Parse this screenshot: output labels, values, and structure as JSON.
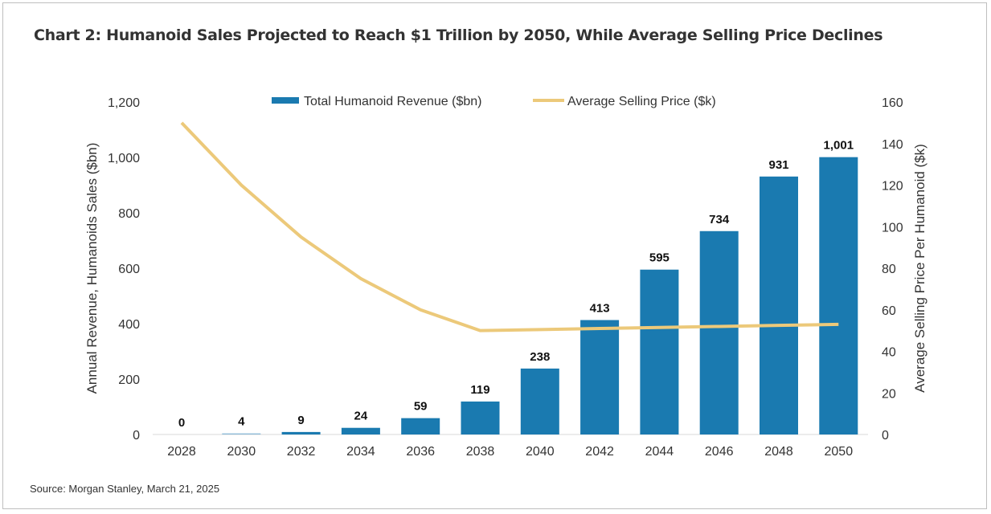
{
  "title": "Chart 2: Humanoid Sales Projected to Reach $1 Trillion by 2050, While Average Selling Price Declines",
  "source": "Source: Morgan Stanley, March 21, 2025",
  "chart_data": {
    "type": "bar+line",
    "categories": [
      "2028",
      "2030",
      "2032",
      "2034",
      "2036",
      "2038",
      "2040",
      "2042",
      "2044",
      "2046",
      "2048",
      "2050"
    ],
    "series": [
      {
        "name": "Total Humanoid Revenue ($bn)",
        "type": "bar",
        "axis": "left",
        "color": "#1a7ab0",
        "values": [
          0,
          4,
          9,
          24,
          59,
          119,
          238,
          413,
          595,
          734,
          931,
          1001
        ],
        "labels": [
          "0",
          "4",
          "9",
          "24",
          "59",
          "119",
          "238",
          "413",
          "595",
          "734",
          "931",
          "1,001"
        ]
      },
      {
        "name": "Average Selling Price ($k)",
        "type": "line",
        "axis": "right",
        "color": "#ecc97a",
        "values": [
          150,
          120,
          95,
          75,
          60,
          50,
          50.5,
          51,
          51.5,
          52,
          52.5,
          53
        ]
      }
    ],
    "ylabel": "Annual Revenue, Humanoids Sales ($bn)",
    "y2label": "Average Selling Price Per Humanoid ($k)",
    "ylim": [
      0,
      1200
    ],
    "y2lim": [
      0,
      160
    ],
    "yticks": [
      "0",
      "200",
      "400",
      "600",
      "800",
      "1,000",
      "1,200"
    ],
    "y2ticks": [
      "0",
      "20",
      "40",
      "60",
      "80",
      "100",
      "120",
      "140",
      "160"
    ],
    "grid": false,
    "legend": "top"
  }
}
